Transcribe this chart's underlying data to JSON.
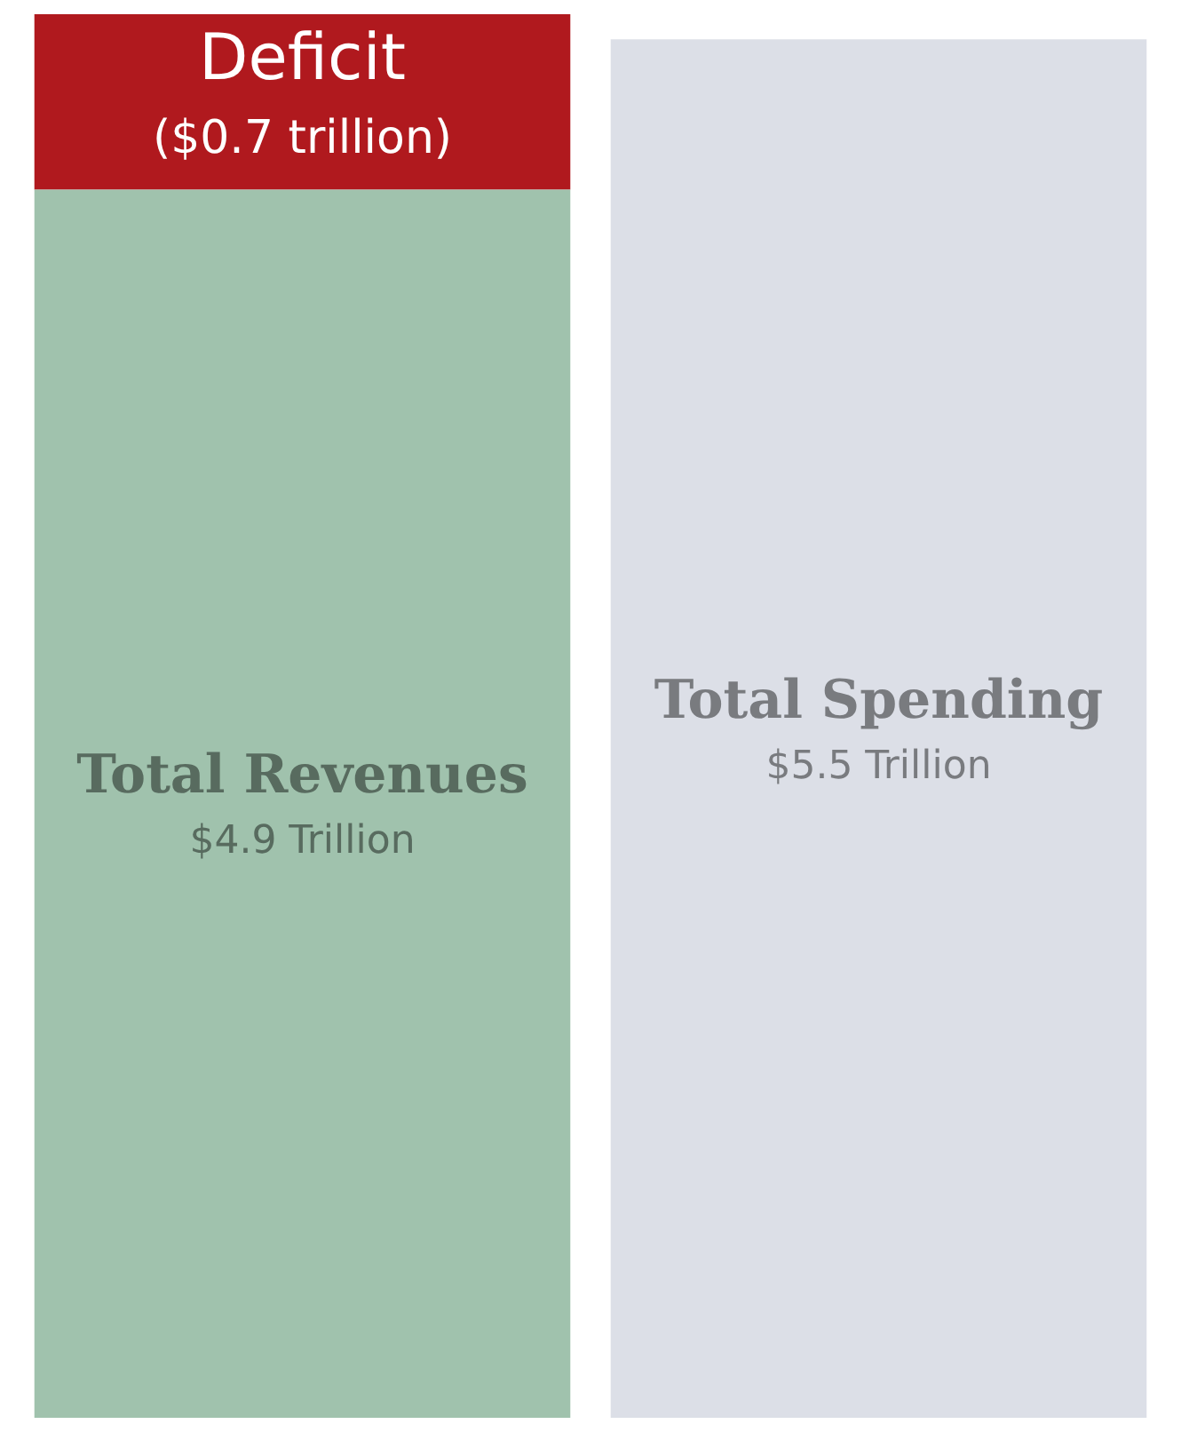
{
  "chart_data": {
    "type": "bar",
    "stacked": true,
    "categories": [
      null,
      null
    ],
    "tick_labels": false,
    "grid": false,
    "legend": false,
    "series": [
      {
        "name": "Total Revenues",
        "color": "#a0c2ad",
        "values": [
          4.9,
          null
        ],
        "value_labels": [
          "$4.9 Trillion",
          null
        ]
      },
      {
        "name": "Deficit",
        "color": "#b0191e",
        "values": [
          0.7,
          null
        ],
        "value_labels": [
          "($0.7 trillion)",
          null
        ]
      },
      {
        "name": "Total Spending",
        "color": "#dcdfe7",
        "values": [
          null,
          5.5
        ],
        "value_labels": [
          null,
          "$5.5 Trillion"
        ]
      }
    ]
  }
}
